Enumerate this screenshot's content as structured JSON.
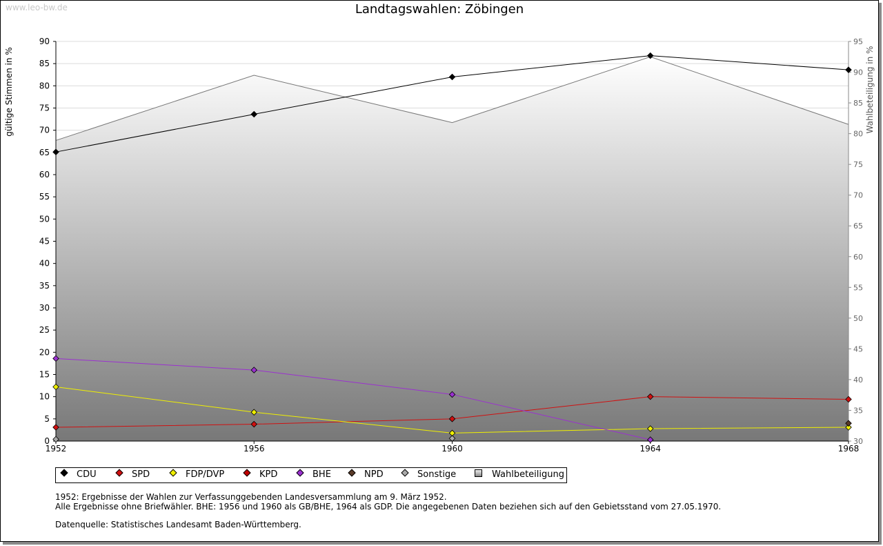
{
  "watermark": "www.leo-bw.de",
  "chart_data": {
    "type": "line",
    "title": "Landtagswahlen: Zöbingen",
    "ylabel": "gültige Stimmen in %",
    "ylabel_right": "Wahlbeteiligung in %",
    "x": [
      1952,
      1956,
      1960,
      1964,
      1968
    ],
    "ylim": [
      0,
      90
    ],
    "y_ticks": [
      0,
      5,
      10,
      15,
      20,
      25,
      30,
      35,
      40,
      45,
      50,
      55,
      60,
      65,
      70,
      75,
      80,
      85,
      90
    ],
    "ylim_right": [
      30,
      95
    ],
    "y_ticks_right": [
      30,
      35,
      40,
      45,
      50,
      55,
      60,
      65,
      70,
      75,
      80,
      85,
      90,
      95
    ],
    "grid": "horizontal",
    "legend_position": "bottom",
    "series": [
      {
        "name": "CDU",
        "color": "#000000",
        "values": [
          65.1,
          73.6,
          82.0,
          86.8,
          83.6
        ]
      },
      {
        "name": "SPD",
        "color": "#d01010",
        "values": [
          3.1,
          3.8,
          5.0,
          10.0,
          9.4
        ]
      },
      {
        "name": "FDP/DVP",
        "color": "#f0f000",
        "values": [
          12.2,
          6.5,
          1.8,
          2.8,
          3.1
        ]
      },
      {
        "name": "KPD",
        "color": "#c00000",
        "values": [
          null,
          null,
          null,
          null,
          null
        ]
      },
      {
        "name": "BHE",
        "color": "#9b30d0",
        "values": [
          18.6,
          16.0,
          10.5,
          0.3,
          null
        ]
      },
      {
        "name": "NPD",
        "color": "#5a3a28",
        "values": [
          null,
          null,
          null,
          null,
          4.0
        ]
      },
      {
        "name": "Sonstige",
        "color": "#aaaaaa",
        "values": [
          0.4,
          null,
          0.6,
          null,
          null
        ]
      },
      {
        "name": "Wahlbeteiligung",
        "color": "#777777",
        "axis": "right",
        "values": [
          78.9,
          89.5,
          81.8,
          92.5,
          81.5
        ]
      }
    ]
  },
  "legend": [
    "CDU",
    "SPD",
    "FDP/DVP",
    "KPD",
    "BHE",
    "NPD",
    "Sonstige",
    "Wahlbeteiligung"
  ],
  "notes": {
    "line1": "1952: Ergebnisse der Wahlen zur Verfassunggebenden Landesversammlung am 9. März 1952.",
    "line2": "Alle Ergebnisse ohne Briefwähler. BHE: 1956 und 1960 als GB/BHE, 1964 als GDP. Die angegebenen Daten beziehen sich auf den Gebietsstand vom 27.05.1970.",
    "source": "Datenquelle: Statistisches Landesamt Baden-Württemberg."
  }
}
